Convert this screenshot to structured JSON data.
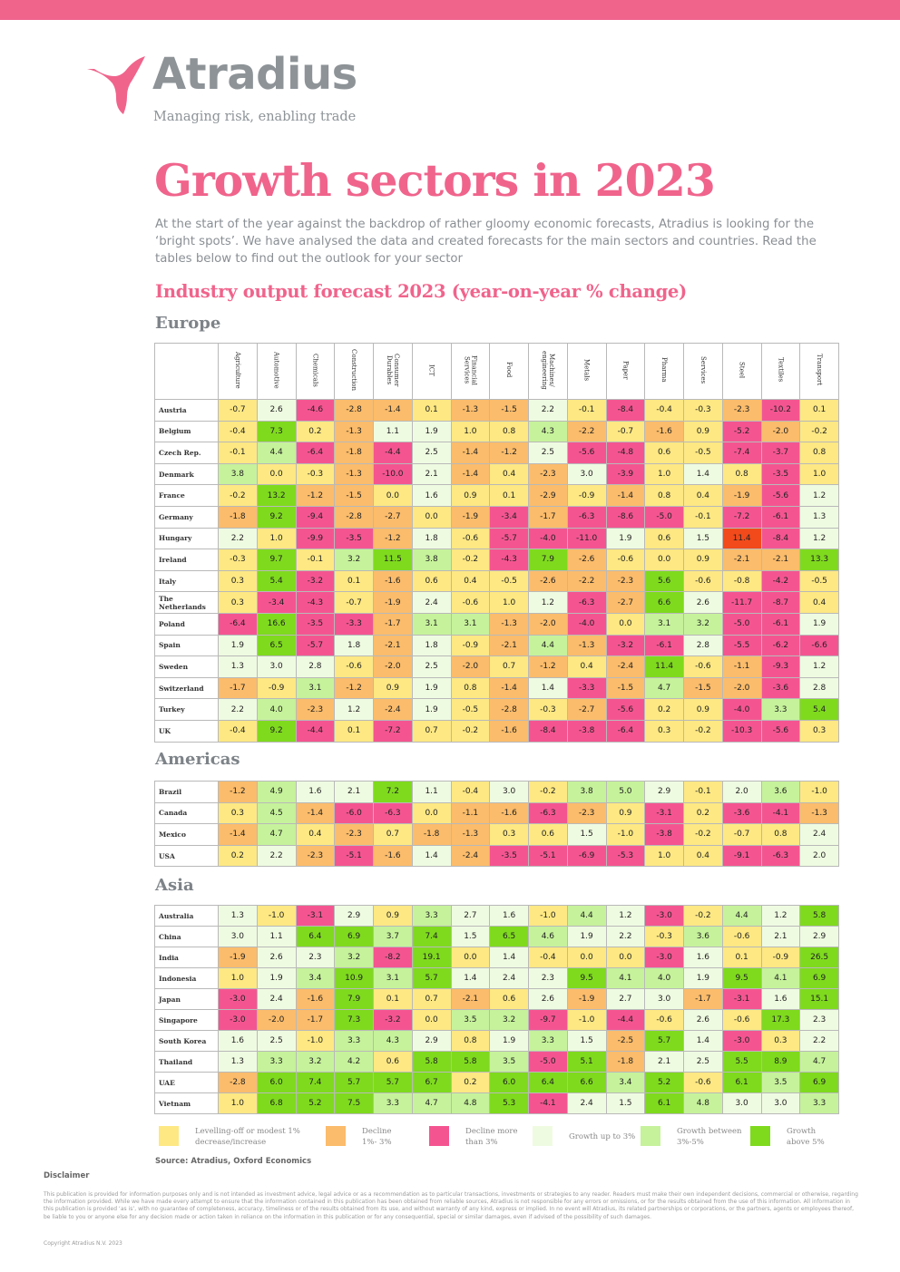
{
  "brand": {
    "name": "Atradius",
    "tagline": "Managing risk, enabling trade",
    "color": "#f0648c"
  },
  "title": "Growth sectors in 2023",
  "intro": "At the start of the year against the backdrop of rather gloomy economic forecasts, Atradius is looking for the ‘bright spots’.  We have analysed the data and created forecasts for the main sectors and countries. Read the tables below to find out the outlook for your sector",
  "subtitle": "Industry output forecast 2023 (year-on-year % change)",
  "sectors": [
    "Agriculture",
    "Automotive",
    "Chemicals",
    "Construction",
    "Consumer\nDurables",
    "ICT",
    "Financial\nServices",
    "Food",
    "Machines/\nengineering",
    "Metals",
    "Paper",
    "Pharma",
    "Services",
    "Steel",
    "Textiles",
    "Transport"
  ],
  "regions": [
    {
      "name": "Europe",
      "rows": [
        {
          "country": "Austria",
          "values": [
            "-0.7",
            "2.6",
            "-4.6",
            "-2.8",
            "-1.4",
            "0.1",
            "-1.3",
            "-1.5",
            "2.2",
            "-0.1",
            "-8.4",
            "-0.4",
            "-0.3",
            "-2.3",
            "-10.2",
            "0.1"
          ]
        },
        {
          "country": "Belgium",
          "values": [
            "-0.4",
            "7.3",
            "0.2",
            "-1.3",
            "1.1",
            "1.9",
            "1.0",
            "0.8",
            "4.3",
            "-2.2",
            "-0.7",
            "-1.6",
            "0.9",
            "-5.2",
            "-2.0",
            "-0.2"
          ]
        },
        {
          "country": "Czech Rep.",
          "values": [
            "-0.1",
            "4.4",
            "-6.4",
            "-1.8",
            "-4.4",
            "2.5",
            "-1.4",
            "-1.2",
            "2.5",
            "-5.6",
            "-4.8",
            "0.6",
            "-0.5",
            "-7.4",
            "-3.7",
            "0.8"
          ]
        },
        {
          "country": "Denmark",
          "values": [
            "3.8",
            "0.0",
            "-0.3",
            "-1.3",
            "-10.0",
            "2.1",
            "-1.4",
            "0.4",
            "-2.3",
            "3.0",
            "-3.9",
            "1.0",
            "1.4",
            "0.8",
            "-3.5",
            "1.0"
          ]
        },
        {
          "country": "France",
          "values": [
            "-0.2",
            "13.2",
            "-1.2",
            "-1.5",
            "0.0",
            "1.6",
            "0.9",
            "0.1",
            "-2.9",
            "-0.9",
            "-1.4",
            "0.8",
            "0.4",
            "-1.9",
            "-5.6",
            "1.2"
          ]
        },
        {
          "country": "Germany",
          "values": [
            "-1.8",
            "9.2",
            "-9.4",
            "-2.8",
            "-2.7",
            "0.0",
            "-1.9",
            "-3.4",
            "-1.7",
            "-6.3",
            "-8.6",
            "-5.0",
            "-0.1",
            "-7.2",
            "-6.1",
            "1.3"
          ]
        },
        {
          "country": "Hungary",
          "values": [
            "2.2",
            "1.0",
            "-9.9",
            "-3.5",
            "-1.2",
            "1.8",
            "-0.6",
            "-5.7",
            "-4.0",
            "-11.0",
            "1.9",
            "0.6",
            "1.5",
            "11.4",
            "-8.4",
            "1.2"
          ]
        },
        {
          "country": "Ireland",
          "values": [
            "-0.3",
            "9.7",
            "-0.1",
            "3.2",
            "11.5",
            "3.8",
            "-0.2",
            "-4.3",
            "7.9",
            "-2.6",
            "-0.6",
            "0.0",
            "0.9",
            "-2.1",
            "-2.1",
            "13.3"
          ]
        },
        {
          "country": "Italy",
          "values": [
            "0.3",
            "5.4",
            "-3.2",
            "0.1",
            "-1.6",
            "0.6",
            "0.4",
            "-0.5",
            "-2.6",
            "-2.2",
            "-2.3",
            "5.6",
            "-0.6",
            "-0.8",
            "-4.2",
            "-0.5"
          ]
        },
        {
          "country": "The Netherlands",
          "values": [
            "0.3",
            "-3.4",
            "-4.3",
            "-0.7",
            "-1.9",
            "2.4",
            "-0.6",
            "1.0",
            "1.2",
            "-6.3",
            "-2.7",
            "6.6",
            "2.6",
            "-11.7",
            "-8.7",
            "0.4"
          ]
        },
        {
          "country": "Poland",
          "values": [
            "-6.4",
            "16.6",
            "-3.5",
            "-3.3",
            "-1.7",
            "3.1",
            "3.1",
            "-1.3",
            "-2.0",
            "-4.0",
            "0.0",
            "3.1",
            "3.2",
            "-5.0",
            "-6.1",
            "1.9"
          ]
        },
        {
          "country": "Spain",
          "values": [
            "1.9",
            "6.5",
            "-5.7",
            "1.8",
            "-2.1",
            "1.8",
            "-0.9",
            "-2.1",
            "4.4",
            "-1.3",
            "-3.2",
            "-6.1",
            "2.8",
            "-5.5",
            "-6.2",
            "-6.6"
          ]
        },
        {
          "country": "Sweden",
          "values": [
            "1.3",
            "3.0",
            "2.8",
            "-0.6",
            "-2.0",
            "2.5",
            "-2.0",
            "0.7",
            "-1.2",
            "0.4",
            "-2.4",
            "11.4",
            "-0.6",
            "-1.1",
            "-9.3",
            "1.2"
          ]
        },
        {
          "country": "Switzerland",
          "values": [
            "-1.7",
            "-0.9",
            "3.1",
            "-1.2",
            "0.9",
            "1.9",
            "0.8",
            "-1.4",
            "1.4",
            "-3.3",
            "-1.5",
            "4.7",
            "-1.5",
            "-2.0",
            "-3.6",
            "2.8"
          ]
        },
        {
          "country": "Turkey",
          "values": [
            "2.2",
            "4.0",
            "-2.3",
            "1.2",
            "-2.4",
            "1.9",
            "-0.5",
            "-2.8",
            "-0.3",
            "-2.7",
            "-5.6",
            "0.2",
            "0.9",
            "-4.0",
            "3.3",
            "5.4"
          ]
        },
        {
          "country": "UK",
          "values": [
            "-0.4",
            "9.2",
            "-4.4",
            "0.1",
            "-7.2",
            "0.7",
            "-0.2",
            "-1.6",
            "-8.4",
            "-3.8",
            "-6.4",
            "0.3",
            "-0.2",
            "-10.3",
            "-5.6",
            "0.3"
          ]
        }
      ]
    },
    {
      "name": "Americas",
      "rows": [
        {
          "country": "Brazil",
          "values": [
            "-1.2",
            "4.9",
            "1.6",
            "2.1",
            "7.2",
            "1.1",
            "-0.4",
            "3.0",
            "-0.2",
            "3.8",
            "5.0",
            "2.9",
            "-0.1",
            "2.0",
            "3.6",
            "-1.0"
          ]
        },
        {
          "country": "Canada",
          "values": [
            "0.3",
            "4.5",
            "-1.4",
            "-6.0",
            "-6.3",
            "0.0",
            "-1.1",
            "-1.6",
            "-6.3",
            "-2.3",
            "0.9",
            "-3.1",
            "0.2",
            "-3.6",
            "-4.1",
            "-1.3"
          ]
        },
        {
          "country": "Mexico",
          "values": [
            "-1.4",
            "4.7",
            "0.4",
            "-2.3",
            "0.7",
            "-1.8",
            "-1.3",
            "0.3",
            "0.6",
            "1.5",
            "-1.0",
            "-3.8",
            "-0.2",
            "-0.7",
            "0.8",
            "2.4"
          ]
        },
        {
          "country": "USA",
          "values": [
            "0.2",
            "2.2",
            "-2.3",
            "-5.1",
            "-1.6",
            "1.4",
            "-2.4",
            "-3.5",
            "-5.1",
            "-6.9",
            "-5.3",
            "1.0",
            "0.4",
            "-9.1",
            "-6.3",
            "2.0"
          ]
        }
      ]
    },
    {
      "name": "Asia",
      "rows": [
        {
          "country": "Australia",
          "values": [
            "1.3",
            "-1.0",
            "-3.1",
            "2.9",
            "0.9",
            "3.3",
            "2.7",
            "1.6",
            "-1.0",
            "4.4",
            "1.2",
            "-3.0",
            "-0.2",
            "4.4",
            "1.2",
            "5.8"
          ]
        },
        {
          "country": "China",
          "values": [
            "3.0",
            "1.1",
            "6.4",
            "6.9",
            "3.7",
            "7.4",
            "1.5",
            "6.5",
            "4.6",
            "1.9",
            "2.2",
            "-0.3",
            "3.6",
            "-0.6",
            "2.1",
            "2.9"
          ]
        },
        {
          "country": "India",
          "values": [
            "-1.9",
            "2.6",
            "2.3",
            "3.2",
            "-8.2",
            "19.1",
            "0.0",
            "1.4",
            "-0.4",
            "0.0",
            "0.0",
            "-3.0",
            "1.6",
            "0.1",
            "-0.9",
            "26.5"
          ]
        },
        {
          "country": "Indonesia",
          "values": [
            "1.0",
            "1.9",
            "3.4",
            "10.9",
            "3.1",
            "5.7",
            "1.4",
            "2.4",
            "2.3",
            "9.5",
            "4.1",
            "4.0",
            "1.9",
            "9.5",
            "4.1",
            "6.9"
          ]
        },
        {
          "country": "Japan",
          "values": [
            "-3.0",
            "2.4",
            "-1.6",
            "7.9",
            "0.1",
            "0.7",
            "-2.1",
            "0.6",
            "2.6",
            "-1.9",
            "2.7",
            "3.0",
            "-1.7",
            "-3.1",
            "1.6",
            "15.1"
          ]
        },
        {
          "country": "Singapore",
          "values": [
            "-3.0",
            "-2.0",
            "-1.7",
            "7.3",
            "-3.2",
            "0.0",
            "3.5",
            "3.2",
            "-9.7",
            "-1.0",
            "-4.4",
            "-0.6",
            "2.6",
            "-0.6",
            "17.3",
            "2.3"
          ]
        },
        {
          "country": "South Korea",
          "values": [
            "1.6",
            "2.5",
            "-1.0",
            "3.3",
            "4.3",
            "2.9",
            "0.8",
            "1.9",
            "3.3",
            "1.5",
            "-2.5",
            "5.7",
            "1.4",
            "-3.0",
            "0.3",
            "2.2"
          ]
        },
        {
          "country": "Thailand",
          "values": [
            "1.3",
            "3.3",
            "3.2",
            "4.2",
            "0.6",
            "5.8",
            "5.8",
            "3.5",
            "-5.0",
            "5.1",
            "-1.8",
            "2.1",
            "2.5",
            "5.5",
            "8.9",
            "4.7"
          ]
        },
        {
          "country": "UAE",
          "values": [
            "-2.8",
            "6.0",
            "7.4",
            "5.7",
            "5.7",
            "6.7",
            "0.2",
            "6.0",
            "6.4",
            "6.6",
            "3.4",
            "5.2",
            "-0.6",
            "6.1",
            "3.5",
            "6.9"
          ]
        },
        {
          "country": "Vietnam",
          "values": [
            "1.0",
            "6.8",
            "5.2",
            "7.5",
            "3.3",
            "4.7",
            "4.8",
            "5.3",
            "-4.1",
            "2.4",
            "1.5",
            "6.1",
            "4.8",
            "3.0",
            "3.0",
            "3.3"
          ]
        }
      ]
    }
  ],
  "legend": [
    {
      "label": "Levelling-off or modest 1%\ndecrease/increase",
      "color": "#fde883"
    },
    {
      "label": "Decline\n1%- 3%",
      "color": "#fbbc6b"
    },
    {
      "label": "Decline more\nthan 3%",
      "color": "#f45591"
    },
    {
      "label": "Growth up to 3%",
      "color": "#effbe1"
    },
    {
      "label": "Growth between\n3%-5%",
      "color": "#c6f29b"
    },
    {
      "label": "Growth\nabove 5%",
      "color": "#7fda1e"
    }
  ],
  "source": "Source: Atradius, Oxford Economics",
  "disclaimer_title": "Disclaimer",
  "disclaimer": "This publication is provided for information purposes only and is not intended as investment advice, legal advice or as a recommendation as to particular transactions, investments or strategies to any reader. Readers must make their own independent decisions, commercial or otherwise, regarding the information provided. While we have made every attempt to ensure that the information contained in this publication has been obtained from reliable sources, Atradius is not responsible for any errors or omissions, or for the results obtained from the use of this information. All information in this publication is provided ‘as is’, with no guarantee of completeness, accuracy, timeliness or of the results obtained from its use, and without warranty of any kind, express or implied. In no event will Atradius, its related partnerships or corporations, or the partners, agents or employees thereof, be liable to you or anyone else for any decision made or action taken in reliance on the information in this publication or for any consequential, special or similar damages, even if advised of the possibility of such damages.",
  "copyright": "Copyright Atradius N.V. 2023"
}
